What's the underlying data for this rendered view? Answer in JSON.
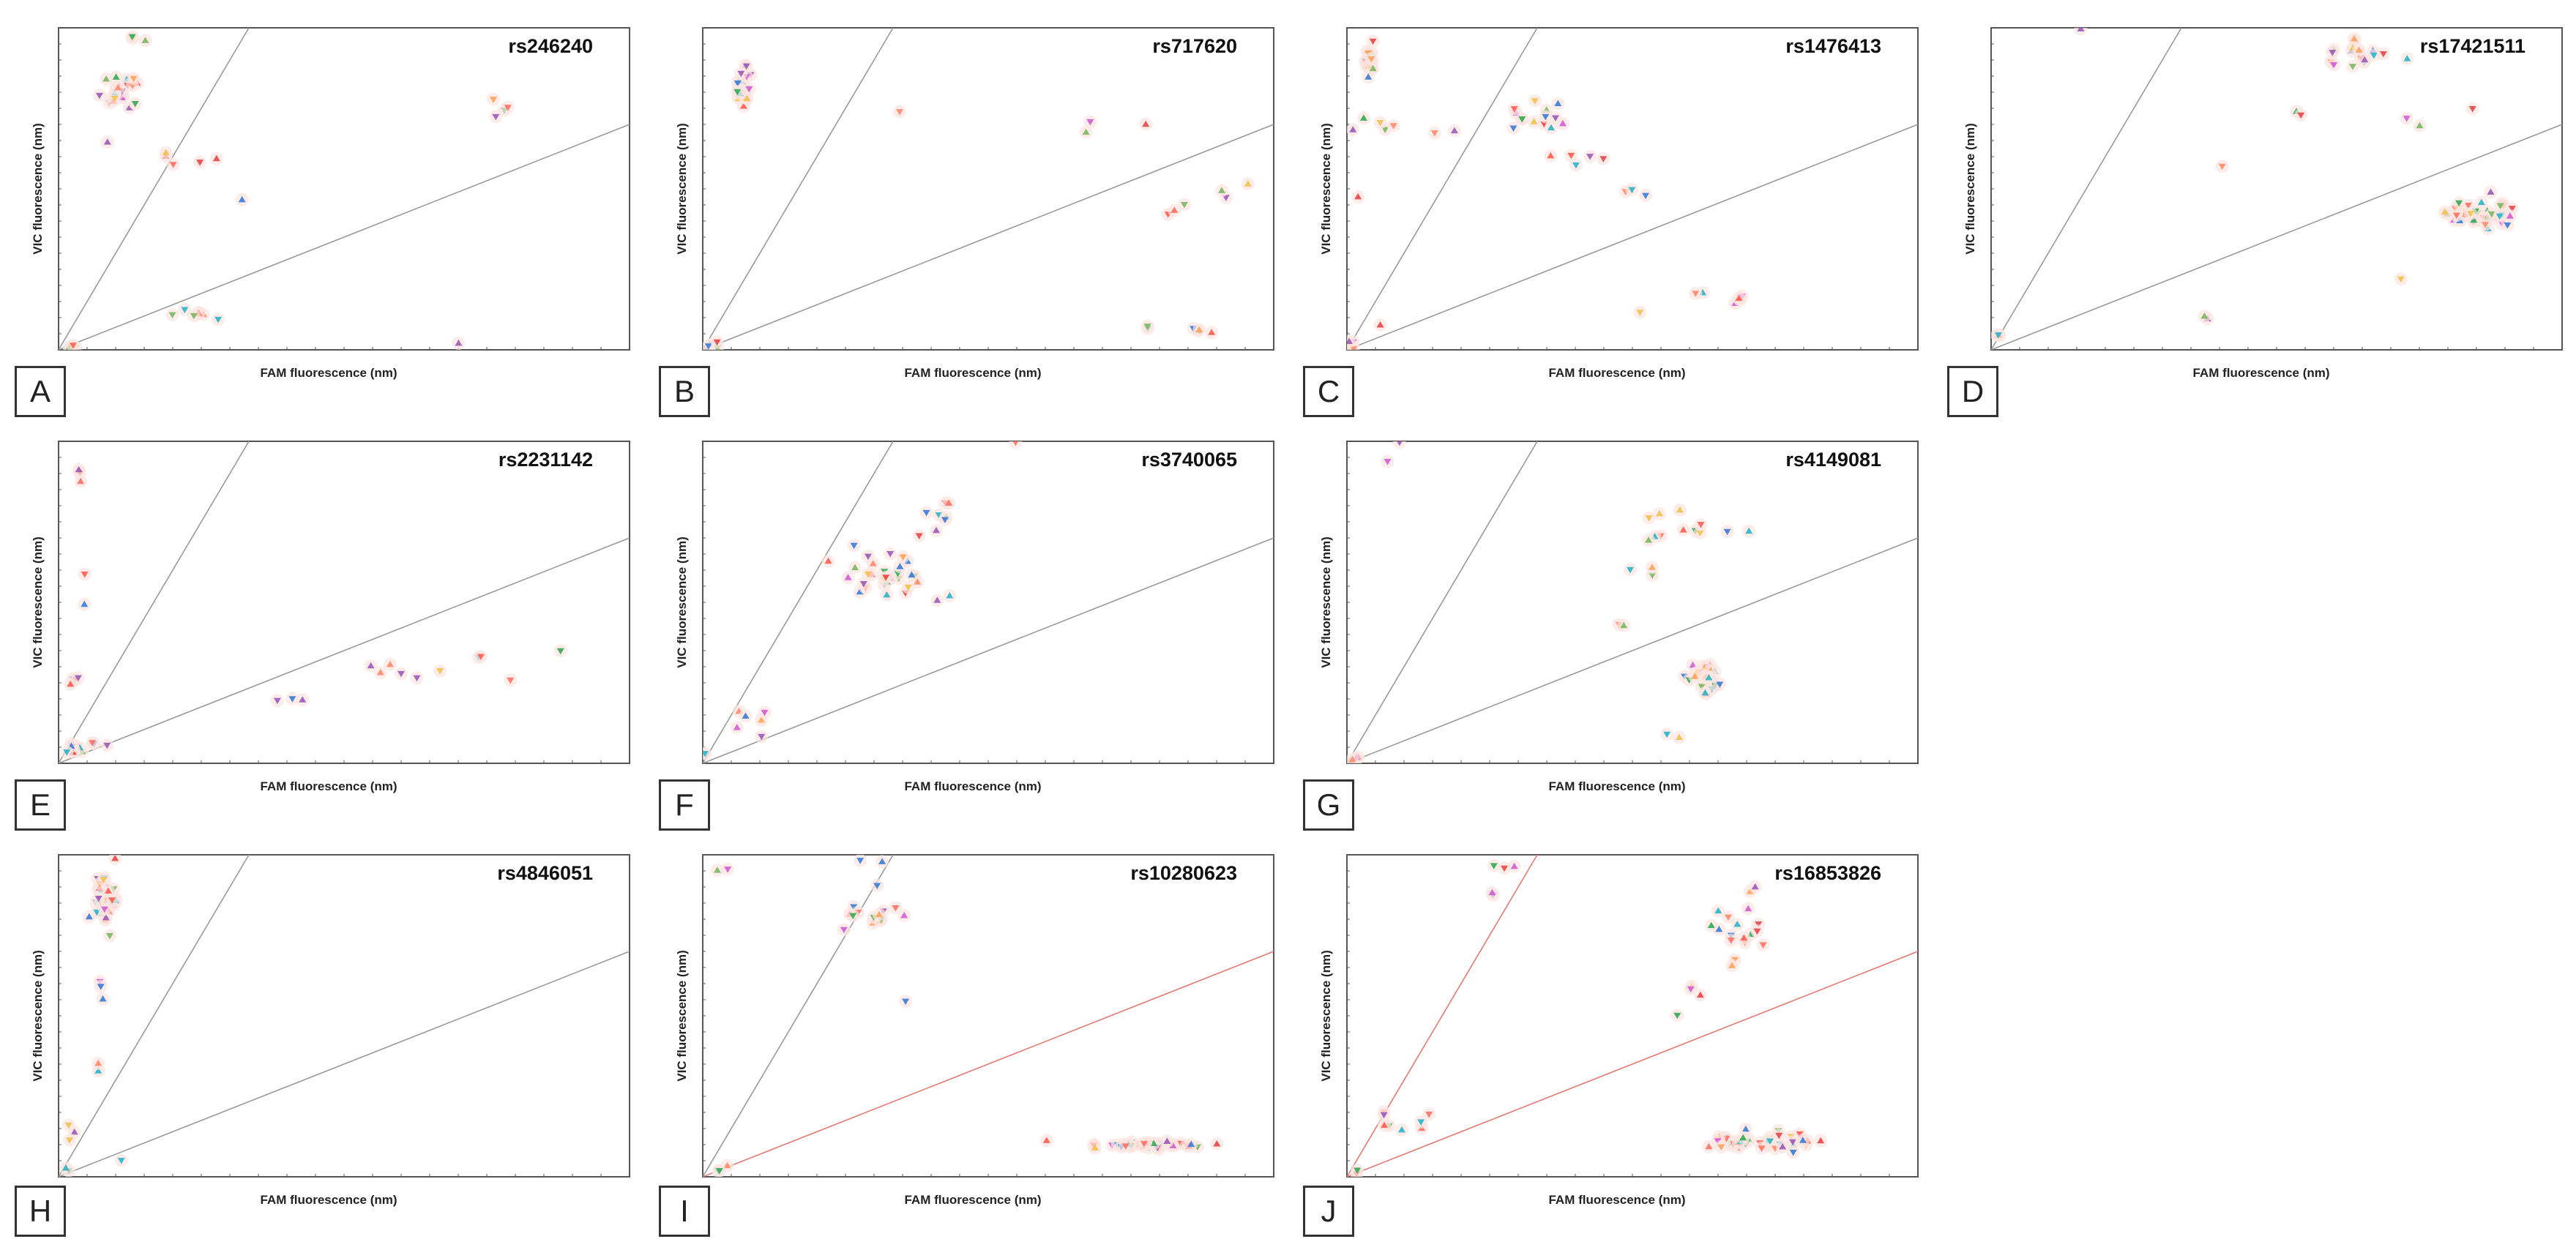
{
  "figure": {
    "xlabel": "FAM fluorescence (nm)",
    "ylabel": "VIC fluorescence (nm)",
    "colors": {
      "frame": "#555555",
      "line": "#9a9a9a",
      "line_red": "#e57a72",
      "halo": "#fbe6e1",
      "points": [
        "#ff5b4f",
        "#ff6f61",
        "#ff8a6a",
        "#ffa15a",
        "#e84545",
        "#2bb3c7",
        "#3a7bd5",
        "#33a853",
        "#9b59b6",
        "#d45bd1",
        "#f2c14e",
        "#7bb661"
      ]
    }
  },
  "chart_data": [
    {
      "panel": "A",
      "title": "rs246240",
      "type": "scatter",
      "xlim": [
        0,
        100
      ],
      "ylim": [
        0,
        100
      ],
      "diagonal_slopes": [
        3.0,
        0.7
      ],
      "clusters": [
        {
          "n": 22,
          "cx": 11,
          "cy": 80,
          "sx": 3,
          "sy": 5
        },
        {
          "n": 3,
          "cx": 13,
          "cy": 97,
          "sx": 2,
          "sy": 1
        },
        {
          "n": 1,
          "cx": 9,
          "cy": 65,
          "sx": 1,
          "sy": 1
        },
        {
          "n": 3,
          "cx": 20,
          "cy": 61,
          "sx": 3,
          "sy": 2
        },
        {
          "n": 2,
          "cx": 28,
          "cy": 58,
          "sx": 2,
          "sy": 2
        },
        {
          "n": 1,
          "cx": 32,
          "cy": 47,
          "sx": 1,
          "sy": 1
        },
        {
          "n": 4,
          "cx": 78,
          "cy": 76,
          "sx": 4,
          "sy": 4
        },
        {
          "n": 7,
          "cx": 25,
          "cy": 11,
          "sx": 4,
          "sy": 2
        },
        {
          "n": 1,
          "cx": 70,
          "cy": 2,
          "sx": 1,
          "sy": 1
        },
        {
          "n": 4,
          "cx": 2,
          "cy": 1,
          "sx": 1,
          "sy": 1
        }
      ]
    },
    {
      "panel": "B",
      "title": "rs717620",
      "type": "scatter",
      "xlim": [
        0,
        100
      ],
      "ylim": [
        0,
        100
      ],
      "diagonal_slopes": [
        3.0,
        0.7
      ],
      "clusters": [
        {
          "n": 18,
          "cx": 7,
          "cy": 82,
          "sx": 1,
          "sy": 6
        },
        {
          "n": 1,
          "cx": 35,
          "cy": 74,
          "sx": 1,
          "sy": 1
        },
        {
          "n": 3,
          "cx": 70,
          "cy": 70,
          "sx": 7,
          "sy": 2
        },
        {
          "n": 3,
          "cx": 84,
          "cy": 46,
          "sx": 2,
          "sy": 3
        },
        {
          "n": 3,
          "cx": 92,
          "cy": 49,
          "sx": 5,
          "sy": 4
        },
        {
          "n": 6,
          "cx": 87,
          "cy": 6,
          "sx": 8,
          "sy": 1
        },
        {
          "n": 4,
          "cx": 2,
          "cy": 2,
          "sx": 1,
          "sy": 1
        }
      ]
    },
    {
      "panel": "C",
      "title": "rs1476413",
      "type": "scatter",
      "xlim": [
        0,
        100
      ],
      "ylim": [
        0,
        100
      ],
      "diagonal_slopes": [
        3.0,
        0.7
      ],
      "clusters": [
        {
          "n": 18,
          "cx": 4,
          "cy": 90,
          "sx": 1,
          "sy": 5
        },
        {
          "n": 3,
          "cx": 4,
          "cy": 70,
          "sx": 2,
          "sy": 5
        },
        {
          "n": 2,
          "cx": 7,
          "cy": 70,
          "sx": 1,
          "sy": 2
        },
        {
          "n": 2,
          "cx": 16,
          "cy": 68,
          "sx": 3,
          "sy": 1
        },
        {
          "n": 14,
          "cx": 34,
          "cy": 72,
          "sx": 5,
          "sy": 4
        },
        {
          "n": 5,
          "cx": 40,
          "cy": 60,
          "sx": 4,
          "sy": 4
        },
        {
          "n": 3,
          "cx": 49,
          "cy": 50,
          "sx": 3,
          "sy": 3
        },
        {
          "n": 6,
          "cx": 66,
          "cy": 16,
          "sx": 6,
          "sy": 2
        },
        {
          "n": 1,
          "cx": 52,
          "cy": 12,
          "sx": 1,
          "sy": 1
        },
        {
          "n": 1,
          "cx": 2,
          "cy": 48,
          "sx": 1,
          "sy": 1
        },
        {
          "n": 1,
          "cx": 5,
          "cy": 7,
          "sx": 1,
          "sy": 1
        },
        {
          "n": 4,
          "cx": 1,
          "cy": 2,
          "sx": 1,
          "sy": 1
        }
      ]
    },
    {
      "panel": "D",
      "title": "rs17421511",
      "type": "scatter",
      "xlim": [
        0,
        100
      ],
      "ylim": [
        0,
        100
      ],
      "diagonal_slopes": [
        3.0,
        0.7
      ],
      "clusters": [
        {
          "n": 1,
          "cx": 16,
          "cy": 100,
          "sx": 1,
          "sy": 1
        },
        {
          "n": 18,
          "cx": 64,
          "cy": 91,
          "sx": 6,
          "sy": 4
        },
        {
          "n": 2,
          "cx": 56,
          "cy": 74,
          "sx": 3,
          "sy": 2
        },
        {
          "n": 2,
          "cx": 73,
          "cy": 68,
          "sx": 2,
          "sy": 5
        },
        {
          "n": 1,
          "cx": 84,
          "cy": 75,
          "sx": 1,
          "sy": 1
        },
        {
          "n": 1,
          "cx": 41,
          "cy": 56,
          "sx": 1,
          "sy": 1
        },
        {
          "n": 40,
          "cx": 86,
          "cy": 42,
          "sx": 5,
          "sy": 5
        },
        {
          "n": 1,
          "cx": 72,
          "cy": 22,
          "sx": 1,
          "sy": 1
        },
        {
          "n": 2,
          "cx": 38,
          "cy": 10,
          "sx": 1,
          "sy": 1
        },
        {
          "n": 4,
          "cx": 1,
          "cy": 4,
          "sx": 1,
          "sy": 1
        }
      ]
    },
    {
      "panel": "E",
      "title": "rs2231142",
      "type": "scatter",
      "xlim": [
        0,
        100
      ],
      "ylim": [
        0,
        100
      ],
      "diagonal_slopes": [
        3.0,
        0.7
      ],
      "clusters": [
        {
          "n": 3,
          "cx": 4,
          "cy": 91,
          "sx": 1,
          "sy": 4
        },
        {
          "n": 2,
          "cx": 4,
          "cy": 55,
          "sx": 1,
          "sy": 8
        },
        {
          "n": 4,
          "cx": 3,
          "cy": 25,
          "sx": 1,
          "sy": 4
        },
        {
          "n": 10,
          "cx": 3,
          "cy": 5,
          "sx": 2,
          "sy": 2
        },
        {
          "n": 3,
          "cx": 7,
          "cy": 6,
          "sx": 2,
          "sy": 1
        },
        {
          "n": 3,
          "cx": 39,
          "cy": 20,
          "sx": 3,
          "sy": 1
        },
        {
          "n": 6,
          "cx": 58,
          "cy": 28,
          "sx": 7,
          "sy": 3
        },
        {
          "n": 2,
          "cx": 75,
          "cy": 33,
          "sx": 3,
          "sy": 1
        },
        {
          "n": 1,
          "cx": 78,
          "cy": 26,
          "sx": 1,
          "sy": 1
        },
        {
          "n": 1,
          "cx": 87,
          "cy": 35,
          "sx": 1,
          "sy": 1
        }
      ]
    },
    {
      "panel": "F",
      "title": "rs3740065",
      "type": "scatter",
      "xlim": [
        0,
        100
      ],
      "ylim": [
        0,
        100
      ],
      "diagonal_slopes": [
        3.0,
        0.7
      ],
      "clusters": [
        {
          "n": 30,
          "cx": 32,
          "cy": 58,
          "sx": 7,
          "sy": 7
        },
        {
          "n": 8,
          "cx": 40,
          "cy": 77,
          "sx": 4,
          "sy": 6
        },
        {
          "n": 2,
          "cx": 42,
          "cy": 52,
          "sx": 2,
          "sy": 2
        },
        {
          "n": 1,
          "cx": 55,
          "cy": 100,
          "sx": 1,
          "sy": 1
        },
        {
          "n": 6,
          "cx": 8,
          "cy": 15,
          "sx": 3,
          "sy": 5
        },
        {
          "n": 1,
          "cx": 1,
          "cy": 2,
          "sx": 1,
          "sy": 1
        }
      ]
    },
    {
      "panel": "G",
      "title": "rs4149081",
      "type": "scatter",
      "xlim": [
        0,
        100
      ],
      "ylim": [
        0,
        100
      ],
      "diagonal_slopes": [
        3.0,
        0.7
      ],
      "clusters": [
        {
          "n": 1,
          "cx": 9,
          "cy": 99,
          "sx": 1,
          "sy": 1
        },
        {
          "n": 1,
          "cx": 8,
          "cy": 93,
          "sx": 1,
          "sy": 1
        },
        {
          "n": 12,
          "cx": 62,
          "cy": 75,
          "sx": 8,
          "sy": 7
        },
        {
          "n": 3,
          "cx": 53,
          "cy": 60,
          "sx": 2,
          "sy": 2
        },
        {
          "n": 2,
          "cx": 48,
          "cy": 43,
          "sx": 1,
          "sy": 1
        },
        {
          "n": 30,
          "cx": 63,
          "cy": 27,
          "sx": 3,
          "sy": 5
        },
        {
          "n": 2,
          "cx": 57,
          "cy": 8,
          "sx": 2,
          "sy": 2
        },
        {
          "n": 3,
          "cx": 1,
          "cy": 2,
          "sx": 1,
          "sy": 1
        }
      ]
    },
    {
      "panel": "H",
      "title": "rs4846051",
      "type": "scatter",
      "xlim": [
        0,
        100
      ],
      "ylim": [
        0,
        100
      ],
      "diagonal_slopes": [
        3.0,
        0.7
      ],
      "clusters": [
        {
          "n": 35,
          "cx": 8,
          "cy": 87,
          "sx": 2,
          "sy": 8
        },
        {
          "n": 3,
          "cx": 7,
          "cy": 58,
          "sx": 1,
          "sy": 4
        },
        {
          "n": 2,
          "cx": 7,
          "cy": 33,
          "sx": 1,
          "sy": 4
        },
        {
          "n": 3,
          "cx": 4,
          "cy": 10,
          "sx": 2,
          "sy": 6
        },
        {
          "n": 1,
          "cx": 10,
          "cy": 4,
          "sx": 1,
          "sy": 1
        },
        {
          "n": 2,
          "cx": 1,
          "cy": 2,
          "sx": 1,
          "sy": 1
        }
      ]
    },
    {
      "panel": "I",
      "title": "rs10280623",
      "type": "scatter",
      "xlim": [
        0,
        100
      ],
      "ylim": [
        0,
        100
      ],
      "diagonal_slopes": [
        3.0,
        0.7
      ],
      "clusters": [
        {
          "n": 2,
          "cx": 4,
          "cy": 94,
          "sx": 1,
          "sy": 1
        },
        {
          "n": 2,
          "cx": 24,
          "cy": 98,
          "sx": 6,
          "sy": 1
        },
        {
          "n": 14,
          "cx": 30,
          "cy": 82,
          "sx": 5,
          "sy": 6
        },
        {
          "n": 1,
          "cx": 37,
          "cy": 55,
          "sx": 1,
          "sy": 1
        },
        {
          "n": 1,
          "cx": 3,
          "cy": 3,
          "sx": 1,
          "sy": 1
        },
        {
          "n": 1,
          "cx": 60,
          "cy": 12,
          "sx": 1,
          "sy": 1
        },
        {
          "n": 40,
          "cx": 78,
          "cy": 10,
          "sx": 9,
          "sy": 1
        },
        {
          "n": 2,
          "cx": 2,
          "cy": 2,
          "sx": 1,
          "sy": 1
        }
      ]
    },
    {
      "panel": "J",
      "title": "rs16853826",
      "type": "scatter",
      "xlim": [
        0,
        100
      ],
      "ylim": [
        0,
        100
      ],
      "diagonal_slopes": [
        3.0,
        0.7
      ],
      "clusters": [
        {
          "n": 3,
          "cx": 28,
          "cy": 97,
          "sx": 2,
          "sy": 1
        },
        {
          "n": 2,
          "cx": 25,
          "cy": 88,
          "sx": 1,
          "sy": 1
        },
        {
          "n": 18,
          "cx": 68,
          "cy": 78,
          "sx": 5,
          "sy": 8
        },
        {
          "n": 3,
          "cx": 62,
          "cy": 58,
          "sx": 2,
          "sy": 3
        },
        {
          "n": 1,
          "cx": 58,
          "cy": 50,
          "sx": 1,
          "sy": 1
        },
        {
          "n": 8,
          "cx": 10,
          "cy": 17,
          "sx": 4,
          "sy": 3
        },
        {
          "n": 45,
          "cx": 72,
          "cy": 11,
          "sx": 9,
          "sy": 2
        },
        {
          "n": 2,
          "cx": 2,
          "cy": 2,
          "sx": 1,
          "sy": 1
        }
      ]
    }
  ]
}
